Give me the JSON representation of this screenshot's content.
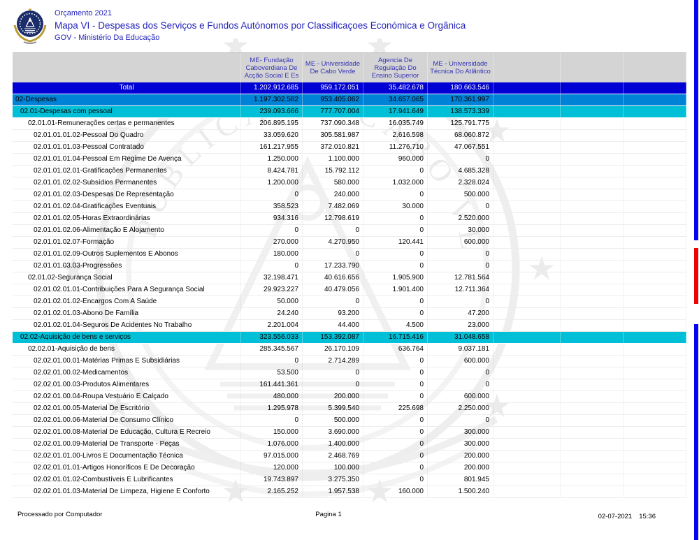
{
  "header": {
    "orcamento": "Orçamento 2021",
    "title": "Mapa VI - Despesas dos Serviços e Fundos Autónomos por Classificaçoes Económica e Orgãnica",
    "org": "GOV - Ministério Da Educação"
  },
  "table": {
    "columns": [
      "",
      "ME- Fundação Caboverdiana De Acção Social E Es",
      "ME - Universidade De Cabo Verde",
      "Agencia De Regulação Do Ensino Superior",
      "ME - Universidade Técnica Do Atlãntico",
      "",
      "",
      ""
    ],
    "rows": [
      {
        "label": "Total",
        "style": "total",
        "values": [
          "1.202.912.685",
          "959.172.051",
          "35.482.678",
          "180.663.546"
        ]
      },
      {
        "label": "02-Despesas",
        "style": "l2",
        "values": [
          "1.197.302.582",
          "953.405.062",
          "34.657.065",
          "170.361.997"
        ]
      },
      {
        "label": "02.01-Despesas com pessoal",
        "style": "l3",
        "values": [
          "239.093.666",
          "777.707.004",
          "17.941.649",
          "138.573.339"
        ]
      },
      {
        "label": "02.01.01-Remunerações certas e permanentes",
        "style": "l4",
        "values": [
          "206.895.195",
          "737.090.348",
          "16.035.749",
          "125.791.775"
        ]
      },
      {
        "label": "02.01.01.01.02-Pessoal Do Quadro",
        "style": "l5",
        "values": [
          "33.059.620",
          "305.581.987",
          "2.616.598",
          "68.060.872"
        ]
      },
      {
        "label": "02.01.01.01.03-Pessoal Contratado",
        "style": "l5",
        "values": [
          "161.217.955",
          "372.010.821",
          "11.276.710",
          "47.067.551"
        ]
      },
      {
        "label": "02.01.01.01.04-Pessoal Em Regime De Avença",
        "style": "l5",
        "values": [
          "1.250.000",
          "1.100.000",
          "960.000",
          "0"
        ]
      },
      {
        "label": "02.01.01.02.01-Gratificações Permanentes",
        "style": "l5",
        "values": [
          "8.424.781",
          "15.792.112",
          "0",
          "4.685.328"
        ]
      },
      {
        "label": "02.01.01.02.02-Subsídios Permanentes",
        "style": "l5",
        "values": [
          "1.200.000",
          "580.000",
          "1.032.000",
          "2.328.024"
        ]
      },
      {
        "label": "02.01.01.02.03-Despesas De Representação",
        "style": "l5",
        "values": [
          "0",
          "240.000",
          "0",
          "500.000"
        ]
      },
      {
        "label": "02.01.01.02.04-Gratificações Eventuais",
        "style": "l5",
        "values": [
          "358.523",
          "7.482.069",
          "30.000",
          "0"
        ]
      },
      {
        "label": "02.01.01.02.05-Horas Extraordinárias",
        "style": "l5",
        "values": [
          "934.316",
          "12.798.619",
          "0",
          "2.520.000"
        ]
      },
      {
        "label": "02.01.01.02.06-Alimentação E Alojamento",
        "style": "l5",
        "values": [
          "0",
          "0",
          "0",
          "30.000"
        ]
      },
      {
        "label": "02.01.01.02.07-Formação",
        "style": "l5",
        "values": [
          "270.000",
          "4.270.950",
          "120.441",
          "600.000"
        ]
      },
      {
        "label": "02.01.01.02.09-Outros Suplementos E Abonos",
        "style": "l5",
        "values": [
          "180.000",
          "0",
          "0",
          "0"
        ]
      },
      {
        "label": "02.01.01.03.03-Progressões",
        "style": "l5",
        "values": [
          "0",
          "17.233.790",
          "0",
          "0"
        ]
      },
      {
        "label": "02.01.02-Segurança Social",
        "style": "l4",
        "values": [
          "32.198.471",
          "40.616.656",
          "1.905.900",
          "12.781.564"
        ]
      },
      {
        "label": "02.01.02.01.01-Contribuições Para A Segurança Social",
        "style": "l5",
        "values": [
          "29.923.227",
          "40.479.056",
          "1.901.400",
          "12.711.364"
        ]
      },
      {
        "label": "02.01.02.01.02-Encargos Com A Saúde",
        "style": "l5",
        "values": [
          "50.000",
          "0",
          "0",
          "0"
        ]
      },
      {
        "label": "02.01.02.01.03-Abono De Família",
        "style": "l5",
        "values": [
          "24.240",
          "93.200",
          "0",
          "47.200"
        ]
      },
      {
        "label": "02.01.02.01.04-Seguros De Acidentes No Trabalho",
        "style": "l5",
        "values": [
          "2.201.004",
          "44.400",
          "4.500",
          "23.000"
        ]
      },
      {
        "label": "02.02-Aquisição de bens e serviços",
        "style": "l3",
        "values": [
          "323.556.033",
          "153.392.087",
          "16.715.416",
          "31.048.658"
        ]
      },
      {
        "label": "02.02.01-Aquisição de bens",
        "style": "l4",
        "values": [
          "285.345.567",
          "26.170.109",
          "636.764",
          "9.037.181"
        ]
      },
      {
        "label": "02.02.01.00.01-Matérias Primas E Subsidiárias",
        "style": "l5",
        "values": [
          "0",
          "2.714.289",
          "0",
          "600.000"
        ]
      },
      {
        "label": "02.02.01.00.02-Medicamentos",
        "style": "l5",
        "values": [
          "53.500",
          "0",
          "0",
          "0"
        ]
      },
      {
        "label": "02.02.01.00.03-Produtos Alimentares",
        "style": "l5",
        "values": [
          "161.441.361",
          "0",
          "0",
          "0"
        ]
      },
      {
        "label": "02.02.01.00.04-Roupa  Vestuário E Calçado",
        "style": "l5",
        "values": [
          "480.000",
          "200.000",
          "0",
          "600.000"
        ]
      },
      {
        "label": "02.02.01.00.05-Material De Escritório",
        "style": "l5",
        "values": [
          "1.295.978",
          "5.399.540",
          "225.698",
          "2.250.000"
        ]
      },
      {
        "label": "02.02.01.00.06-Material De Consumo Clínico",
        "style": "l5",
        "values": [
          "0",
          "500.000",
          "0",
          "0"
        ]
      },
      {
        "label": "02.02.01.00.08-Material De Educação, Cultura E Recreio",
        "style": "l5",
        "values": [
          "150.000",
          "3.690.000",
          "0",
          "300.000"
        ]
      },
      {
        "label": "02.02.01.00.09-Material De Transporte - Peças",
        "style": "l5",
        "values": [
          "1.076.000",
          "1.400.000",
          "0",
          "300.000"
        ]
      },
      {
        "label": "02.02.01.01.00-Livros E Documentação Técnica",
        "style": "l5",
        "values": [
          "97.015.000",
          "2.468.769",
          "0",
          "200.000"
        ]
      },
      {
        "label": "02.02.01.01.01-Artigos Honoríficos E De Decoração",
        "style": "l5",
        "values": [
          "120.000",
          "100.000",
          "0",
          "200.000"
        ]
      },
      {
        "label": "02.02.01.01.02-Combustíveis E Lubrificantes",
        "style": "l5",
        "values": [
          "19.743.897",
          "3.275.350",
          "0",
          "801.945"
        ]
      },
      {
        "label": "02.02.01.01.03-Material De Limpeza, Higiene E Conforto",
        "style": "l5",
        "values": [
          "2.165.252",
          "1.957.538",
          "160.000",
          "1.500.240"
        ]
      }
    ]
  },
  "footer": {
    "left": "Processado por Computador",
    "center": "Pagina 1",
    "date": "02-07-2021",
    "time": "15:36"
  },
  "colors": {
    "total_row": "#0000d4",
    "level2_row": "#0082d6",
    "level3_row": "#00bfd6",
    "header_band": "#d4d4d4",
    "header_text": "#3434b4",
    "title_text": "#2323bb",
    "edge_blue": "#0404f0",
    "edge_red": "#ee0404"
  }
}
